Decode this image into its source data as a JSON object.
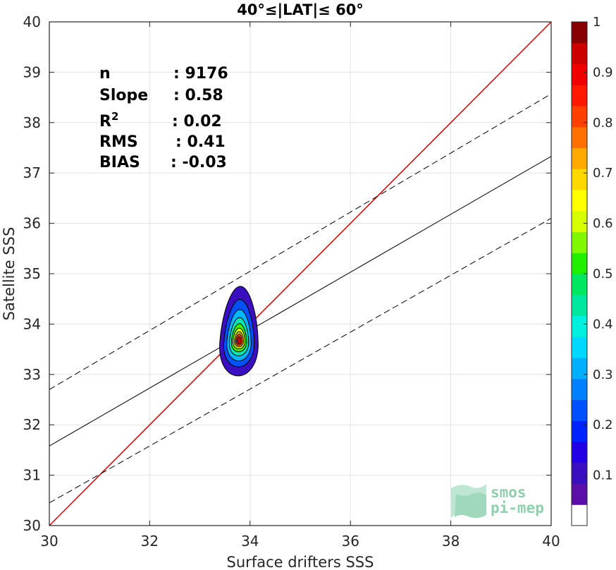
{
  "chart_data": {
    "type": "scatter",
    "title": "40°≤|LAT|≤ 60°",
    "xlabel": "Surface drifters SSS",
    "ylabel": "Satellite SSS",
    "xlim": [
      30,
      40
    ],
    "ylim": [
      30,
      40
    ],
    "xticks": [
      30,
      32,
      34,
      36,
      38,
      40
    ],
    "yticks": [
      30,
      31,
      32,
      33,
      34,
      35,
      36,
      37,
      38,
      39,
      40
    ],
    "grid": true,
    "stats": [
      {
        "label": "n",
        "value": ": 9176"
      },
      {
        "label": "Slope",
        "value": ": 0.58"
      },
      {
        "label": "R",
        "sup": "2",
        "value": ": 0.02"
      },
      {
        "label": "RMS",
        "value": ": 0.41"
      },
      {
        "label": "BIAS",
        "value": ": -0.03"
      }
    ],
    "lines": [
      {
        "style": "red-solid",
        "points": [
          [
            30,
            30
          ],
          [
            40,
            40
          ]
        ]
      },
      {
        "style": "black-solid",
        "points": [
          [
            30,
            31.58
          ],
          [
            40,
            37.33
          ]
        ]
      },
      {
        "style": "black-dashed",
        "points": [
          [
            30,
            32.7
          ],
          [
            40,
            38.57
          ]
        ]
      },
      {
        "style": "black-dashed",
        "points": [
          [
            30,
            30.45
          ],
          [
            40,
            36.1
          ]
        ]
      }
    ],
    "density": {
      "center": [
        33.78,
        33.67
      ],
      "levels": [
        {
          "level": 0.05,
          "rx": 0.38,
          "ry_up": 1.08,
          "ry_down": 0.7,
          "color": "#3a0fbf"
        },
        {
          "level": 0.15,
          "rx": 0.3,
          "ry_up": 0.82,
          "ry_down": 0.52,
          "color": "#0050ff"
        },
        {
          "level": 0.25,
          "rx": 0.24,
          "ry_up": 0.62,
          "ry_down": 0.4,
          "color": "#00b6ff"
        },
        {
          "level": 0.4,
          "rx": 0.19,
          "ry_up": 0.46,
          "ry_down": 0.3,
          "color": "#00e8b0"
        },
        {
          "level": 0.55,
          "rx": 0.15,
          "ry_up": 0.34,
          "ry_down": 0.22,
          "color": "#3cf000"
        },
        {
          "level": 0.65,
          "rx": 0.12,
          "ry_up": 0.25,
          "ry_down": 0.16,
          "color": "#d8ff00"
        },
        {
          "level": 0.75,
          "rx": 0.09,
          "ry_up": 0.18,
          "ry_down": 0.12,
          "color": "#ffb400"
        },
        {
          "level": 0.85,
          "rx": 0.065,
          "ry_up": 0.13,
          "ry_down": 0.09,
          "color": "#ff4000"
        },
        {
          "level": 0.95,
          "rx": 0.04,
          "ry_up": 0.08,
          "ry_down": 0.06,
          "color": "#cc0000"
        }
      ]
    },
    "colorbar": {
      "range": [
        0,
        1
      ],
      "ticks": [
        0.1,
        0.2,
        0.3,
        0.4,
        0.5,
        0.6,
        0.7,
        0.8,
        0.9,
        1
      ],
      "colors": [
        "#ffffff",
        "#5c0fa8",
        "#3a0fbf",
        "#2200e6",
        "#0022ff",
        "#0050ff",
        "#0080ff",
        "#00b0ff",
        "#00d8ff",
        "#00f0e0",
        "#00e8a0",
        "#00e860",
        "#20f000",
        "#80f800",
        "#d8ff00",
        "#ffff00",
        "#ffd800",
        "#ffa800",
        "#ff7000",
        "#ff4000",
        "#ff1800",
        "#f00000",
        "#cc0000",
        "#880000"
      ]
    }
  },
  "logo": {
    "line1": "smos",
    "line2": "pi-mep",
    "color": "#8fcfae"
  }
}
